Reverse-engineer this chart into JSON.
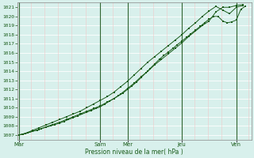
{
  "xlabel": "Pression niveau de la mer( hPa )",
  "background_color": "#d8f0ec",
  "plot_bg_color": "#d8f0ec",
  "grid_color_h": "#ffffff",
  "grid_color_v_minor": "#f0c8c8",
  "grid_color_v_major": "#336633",
  "line_color": "#1a5c1a",
  "ylim": [
    1006.5,
    1021.5
  ],
  "yticks": [
    1007,
    1008,
    1009,
    1010,
    1011,
    1012,
    1013,
    1014,
    1015,
    1016,
    1017,
    1018,
    1019,
    1020,
    1021
  ],
  "day_labels": [
    "Mar",
    "Sam",
    "Mer",
    "Jeu",
    "Ven"
  ],
  "major_x": [
    0.0,
    3.0,
    4.0,
    6.0,
    8.0
  ],
  "xlim": [
    -0.05,
    8.55
  ],
  "series1_x": [
    0.0,
    0.17,
    0.33,
    0.5,
    0.67,
    0.83,
    1.0,
    1.17,
    1.33,
    1.5,
    1.67,
    1.83,
    2.0,
    2.17,
    2.33,
    2.5,
    2.67,
    2.83,
    3.0,
    3.17,
    3.33,
    3.5,
    3.67,
    3.83,
    4.0,
    4.17,
    4.33,
    4.5,
    4.67,
    4.83,
    5.0,
    5.17,
    5.33,
    5.5,
    5.67,
    5.83,
    6.0,
    6.17,
    6.33,
    6.5,
    6.67,
    6.83,
    7.0,
    7.17,
    7.33,
    7.5,
    7.67,
    7.83,
    8.0,
    8.17,
    8.33
  ],
  "series1_y": [
    1007.0,
    1007.1,
    1007.25,
    1007.4,
    1007.55,
    1007.7,
    1007.85,
    1008.0,
    1008.15,
    1008.3,
    1008.5,
    1008.7,
    1008.9,
    1009.1,
    1009.3,
    1009.5,
    1009.7,
    1009.9,
    1010.1,
    1010.4,
    1010.7,
    1011.0,
    1011.3,
    1011.6,
    1012.0,
    1012.4,
    1012.8,
    1013.3,
    1013.8,
    1014.3,
    1014.8,
    1015.3,
    1015.7,
    1016.1,
    1016.5,
    1016.9,
    1017.3,
    1017.7,
    1018.1,
    1018.5,
    1018.9,
    1019.3,
    1019.7,
    1020.0,
    1020.0,
    1019.5,
    1019.3,
    1019.4,
    1019.6,
    1020.8,
    1021.1
  ],
  "series2_x": [
    0.0,
    0.25,
    0.5,
    0.75,
    1.0,
    1.25,
    1.5,
    1.75,
    2.0,
    2.25,
    2.5,
    2.75,
    3.0,
    3.25,
    3.5,
    3.75,
    4.0,
    4.25,
    4.5,
    4.75,
    5.0,
    5.25,
    5.5,
    5.75,
    6.0,
    6.25,
    6.5,
    6.75,
    7.0,
    7.25,
    7.5,
    7.75,
    8.0,
    8.25
  ],
  "series2_y": [
    1007.0,
    1007.15,
    1007.4,
    1007.6,
    1007.9,
    1008.15,
    1008.4,
    1008.7,
    1009.0,
    1009.3,
    1009.6,
    1009.9,
    1010.2,
    1010.6,
    1011.0,
    1011.5,
    1012.1,
    1012.7,
    1013.4,
    1014.0,
    1014.7,
    1015.3,
    1015.9,
    1016.5,
    1017.1,
    1017.8,
    1018.4,
    1019.0,
    1019.5,
    1020.5,
    1021.0,
    1021.0,
    1021.2,
    1021.3
  ],
  "series3_x": [
    0.0,
    0.25,
    0.5,
    0.75,
    1.0,
    1.25,
    1.5,
    1.75,
    2.0,
    2.25,
    2.5,
    2.75,
    3.0,
    3.25,
    3.5,
    3.75,
    4.0,
    4.25,
    4.5,
    4.75,
    5.0,
    5.25,
    5.5,
    5.75,
    6.0,
    6.25,
    6.5,
    6.75,
    7.0,
    7.25,
    7.5,
    7.75,
    8.0,
    8.25
  ],
  "series3_y": [
    1007.0,
    1007.2,
    1007.5,
    1007.8,
    1008.1,
    1008.4,
    1008.7,
    1009.0,
    1009.3,
    1009.6,
    1010.0,
    1010.4,
    1010.8,
    1011.2,
    1011.7,
    1012.3,
    1012.9,
    1013.6,
    1014.3,
    1015.0,
    1015.6,
    1016.2,
    1016.8,
    1017.4,
    1018.0,
    1018.7,
    1019.3,
    1020.0,
    1020.6,
    1021.1,
    1020.7,
    1020.3,
    1021.0,
    1021.2
  ]
}
